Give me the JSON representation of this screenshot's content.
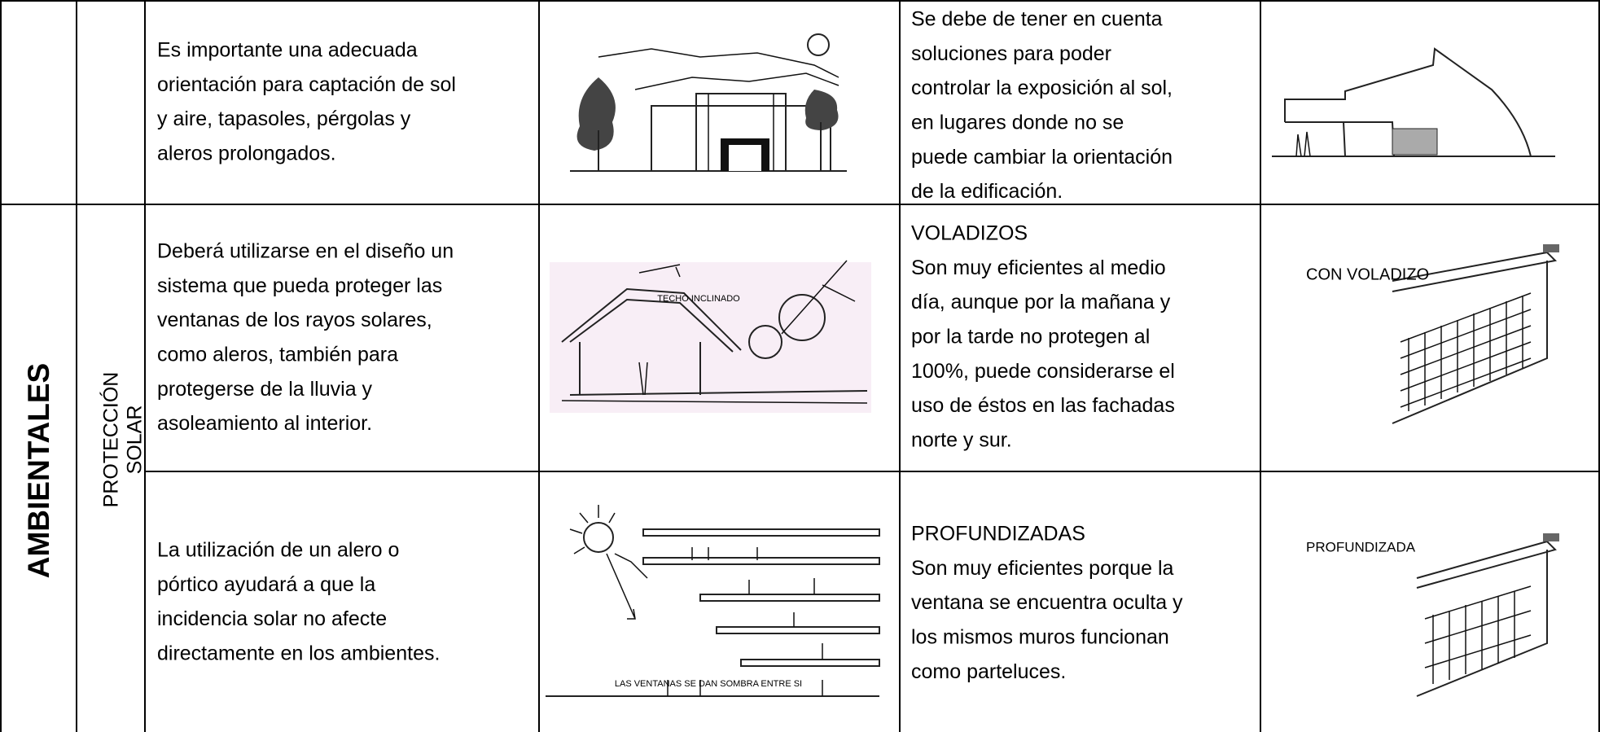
{
  "table": {
    "category": "AMBIENTALES",
    "subcategory": [
      "PROTECCIÓN",
      "SOLAR"
    ],
    "rows": [
      {
        "description": [
          "Es importante una adecuada",
          "orientación para captación de sol",
          "y aire, tapasoles, pérgolas y",
          "aleros prolongados."
        ],
        "recommendation": [
          "Se debe de tener en cuenta",
          "soluciones para poder",
          "controlar la exposición al sol,",
          "en lugares donde no se",
          "puede cambiar la orientación",
          "de la edificación."
        ]
      },
      {
        "description": [
          "Deberá utilizarse en el diseño un",
          "sistema que pueda proteger las",
          "ventanas de los rayos solares,",
          "como aleros, también para",
          "protegerse de la lluvia y",
          "asoleamiento al interior."
        ],
        "sketch_label": "TECHO INCLINADO",
        "recommendation_title": "VOLADIZOS",
        "recommendation": [
          "Son muy eficientes al medio",
          "día, aunque por la mañana y",
          "por la tarde no protegen al",
          "100%, puede considerarse el",
          "uso de éstos en las fachadas",
          "norte y sur."
        ],
        "detail_label": "CON VOLADIZO"
      },
      {
        "description": [
          "La utilización de un alero o",
          "pórtico ayudará a que la",
          "incidencia solar no afecte",
          "directamente en los ambientes."
        ],
        "sketch_label": "LAS VENTANAS SE DAN SOMBRA ENTRE SI",
        "recommendation_title": "PROFUNDIZADAS",
        "recommendation": [
          "Son muy eficientes porque la",
          "ventana se encuentra oculta y",
          "los mismos muros funcionan",
          "como parteluces."
        ],
        "detail_label": "PROFUNDIZADA"
      }
    ]
  }
}
